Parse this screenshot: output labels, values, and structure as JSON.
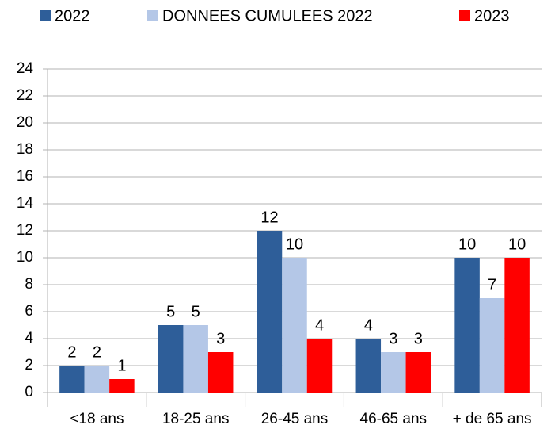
{
  "chart_data": {
    "type": "bar",
    "categories": [
      "<18 ans",
      "18-25 ans",
      "26-45 ans",
      "46-65 ans",
      "+ de 65 ans"
    ],
    "series": [
      {
        "name": "2022",
        "color": "#2e5e99",
        "values": [
          2,
          5,
          12,
          4,
          10
        ]
      },
      {
        "name": "DONNEES CUMULEES 2022",
        "color": "#b4c7e7",
        "values": [
          2,
          5,
          10,
          3,
          7
        ]
      },
      {
        "name": "2023",
        "color": "#ff0000",
        "values": [
          1,
          3,
          4,
          3,
          10
        ]
      }
    ],
    "ylim": [
      0,
      24
    ],
    "yticks": [
      0,
      2,
      4,
      6,
      8,
      10,
      12,
      14,
      16,
      18,
      20,
      22,
      24
    ],
    "grid": true,
    "legend": "top"
  }
}
